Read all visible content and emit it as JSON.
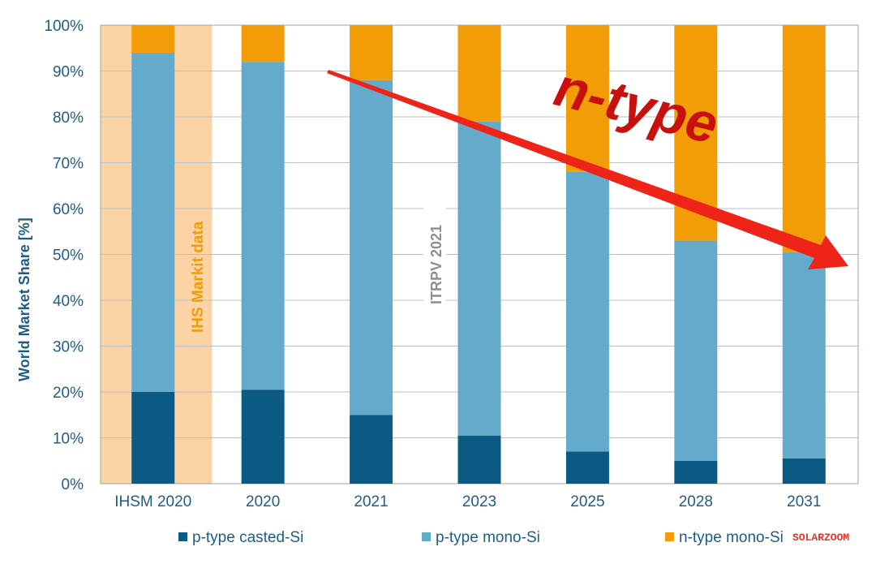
{
  "chart_data": {
    "type": "bar",
    "stacked": true,
    "title": "",
    "xlabel": "",
    "ylabel": "World Market Share [%]",
    "ylim": [
      0,
      100
    ],
    "yticks": [
      "0%",
      "10%",
      "20%",
      "30%",
      "40%",
      "50%",
      "60%",
      "70%",
      "80%",
      "90%",
      "100%"
    ],
    "grid": true,
    "categories": [
      "IHSM 2020",
      "2020",
      "2021",
      "2023",
      "2025",
      "2028",
      "2031"
    ],
    "series": [
      {
        "name": "p-type casted-Si",
        "color": "#0b5a84",
        "values": [
          20,
          20.5,
          15,
          10.5,
          7,
          5,
          5.5
        ]
      },
      {
        "name": "p-type mono-Si",
        "color": "#64abcb",
        "values": [
          74,
          71.5,
          73,
          68.5,
          61,
          48,
          45
        ]
      },
      {
        "name": "n-type mono-Si",
        "color": "#f29c08",
        "values": [
          6,
          8,
          12,
          21,
          32,
          47,
          49.5
        ]
      }
    ],
    "legend_position": "bottom",
    "annotations": {
      "ihs_band": "IHS Markit data",
      "itrpv": "ITRPV 2021",
      "arrow_label": "n-type",
      "watermark": "SOLARZOOM"
    }
  }
}
